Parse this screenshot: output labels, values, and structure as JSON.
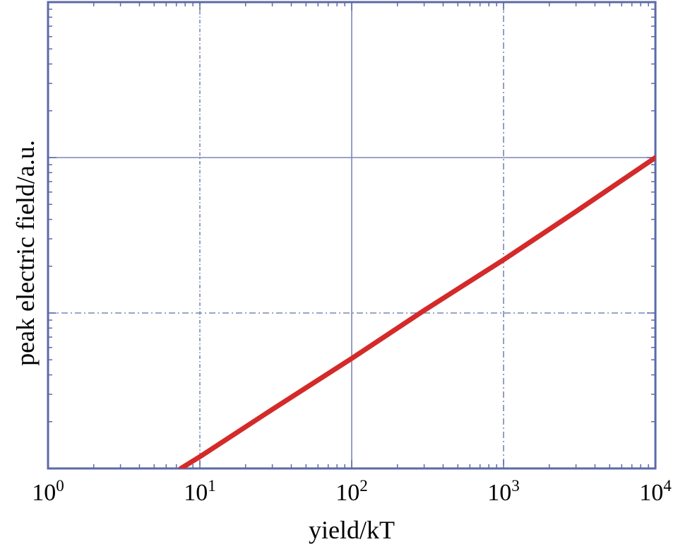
{
  "chart_data": {
    "type": "line",
    "xlabel": "yield/kT",
    "ylabel": "peak electric field/a.u.",
    "x_scale": "log",
    "y_scale": "log",
    "xlim": [
      1,
      10000
    ],
    "ylim": [
      1,
      1000
    ],
    "x_ticks": [
      {
        "base": "10",
        "exp": "0"
      },
      {
        "base": "10",
        "exp": "1"
      },
      {
        "base": "10",
        "exp": "2"
      },
      {
        "base": "10",
        "exp": "3"
      },
      {
        "base": "10",
        "exp": "4"
      }
    ],
    "y_tick_labels_shown": false,
    "grid": true,
    "legend": "none",
    "series": [
      {
        "color": "#d42a2a",
        "x": [
          7.5,
          10,
          30,
          100,
          300,
          1000,
          3000,
          10000
        ],
        "y": [
          1,
          1.19,
          2.4,
          5.1,
          10.4,
          22,
          45,
          100
        ]
      }
    ],
    "colors": {
      "frame": "#5b6aa8",
      "grid": "#7a86b8",
      "line": "#d42a2a"
    }
  }
}
